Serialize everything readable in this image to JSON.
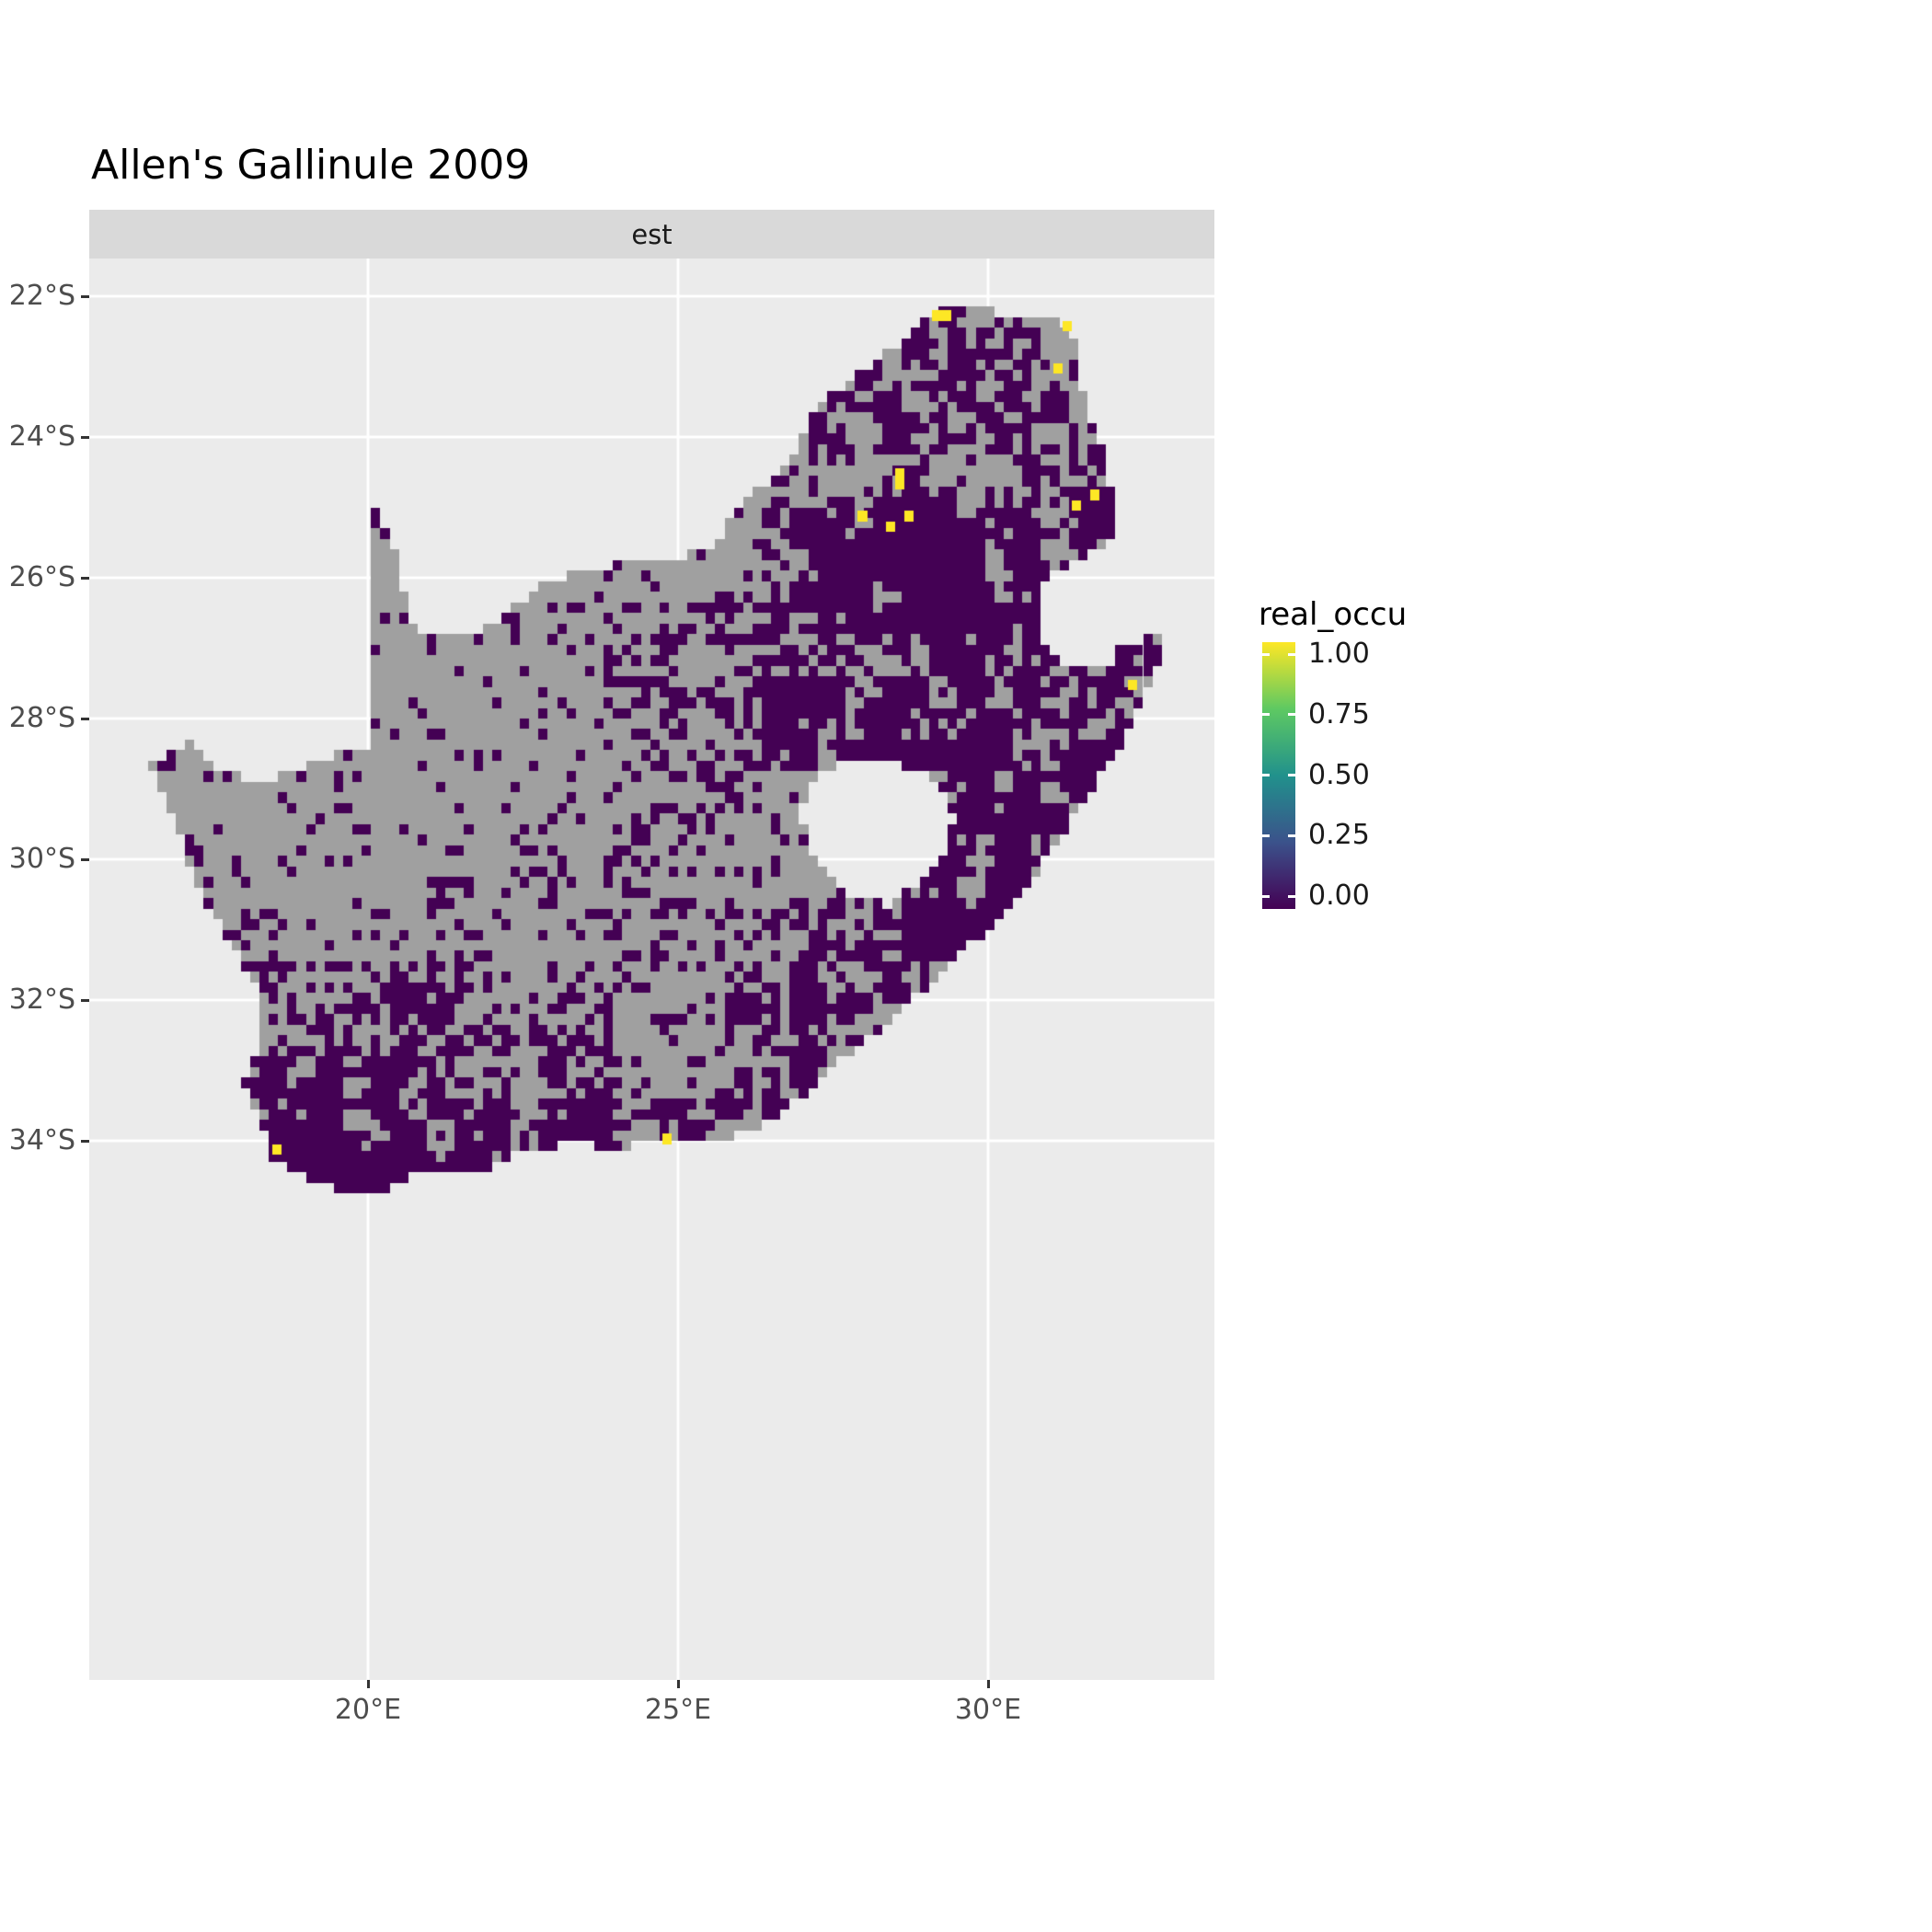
{
  "title": "Allen's Gallinule 2009",
  "facet_label": "est",
  "legend": {
    "title": "real_occu",
    "entries": [
      {
        "label": "1.00",
        "value": 1.0
      },
      {
        "label": "0.75",
        "value": 0.75
      },
      {
        "label": "0.50",
        "value": 0.5
      },
      {
        "label": "0.25",
        "value": 0.25
      },
      {
        "label": "0.00",
        "value": 0.0
      }
    ]
  },
  "axes": {
    "x": [
      {
        "label": "20°E",
        "lon": 20
      },
      {
        "label": "25°E",
        "lon": 25
      },
      {
        "label": "30°E",
        "lon": 30
      }
    ],
    "y": [
      {
        "label": "22°S",
        "lat": -22
      },
      {
        "label": "24°S",
        "lat": -24
      },
      {
        "label": "26°S",
        "lat": -26
      },
      {
        "label": "28°S",
        "lat": -28
      },
      {
        "label": "30°S",
        "lat": -30
      },
      {
        "label": "32°S",
        "lat": -32
      },
      {
        "label": "34°S",
        "lat": -34
      }
    ]
  },
  "chart_data": {
    "type": "heatmap",
    "subtype": "geographic-raster-occupancy-map",
    "title": "Allen's Gallinule 2009",
    "facet": "est",
    "legend_title": "real_occu",
    "legend_type": "colorbar",
    "value_range": [
      0,
      1
    ],
    "geography": "South Africa (Lesotho shown as hole, Eswatini as notch)",
    "x_breaks_deg_east": [
      20,
      25,
      30
    ],
    "y_breaks_deg_south": [
      22,
      24,
      26,
      28,
      30,
      32,
      34
    ],
    "cell_size_deg": 0.15,
    "raster_lon_range": [
      16.0,
      33.2
    ],
    "raster_lat_range": [
      -35.2,
      -22.0
    ],
    "colors": {
      "zero": "#440154",
      "one": "#fde725",
      "na": "#a0a0a0",
      "panel": "#ebebeb",
      "strip": "#d9d9d9",
      "grid": "#ffffff",
      "viridis": [
        "#440154",
        "#3b528b",
        "#21918c",
        "#5ec962",
        "#fde725"
      ]
    },
    "outline_south_africa": [
      [
        20.0,
        -24.75
      ],
      [
        20.2,
        -25.1
      ],
      [
        20.4,
        -25.55
      ],
      [
        20.55,
        -26.0
      ],
      [
        20.65,
        -26.5
      ],
      [
        20.85,
        -26.85
      ],
      [
        21.4,
        -26.85
      ],
      [
        21.9,
        -26.7
      ],
      [
        22.4,
        -26.35
      ],
      [
        22.9,
        -26.05
      ],
      [
        23.5,
        -25.9
      ],
      [
        24.1,
        -25.8
      ],
      [
        24.75,
        -25.75
      ],
      [
        25.35,
        -25.65
      ],
      [
        25.65,
        -25.5
      ],
      [
        25.85,
        -25.1
      ],
      [
        26.05,
        -24.85
      ],
      [
        26.5,
        -24.6
      ],
      [
        26.85,
        -24.3
      ],
      [
        27.1,
        -23.7
      ],
      [
        27.5,
        -23.4
      ],
      [
        27.95,
        -23.05
      ],
      [
        28.4,
        -22.8
      ],
      [
        28.9,
        -22.35
      ],
      [
        29.3,
        -22.15
      ],
      [
        29.8,
        -22.15
      ],
      [
        30.3,
        -22.3
      ],
      [
        30.9,
        -22.3
      ],
      [
        31.3,
        -22.4
      ],
      [
        31.5,
        -23.0
      ],
      [
        31.55,
        -23.6
      ],
      [
        31.8,
        -24.05
      ],
      [
        31.95,
        -24.45
      ],
      [
        32.0,
        -24.95
      ],
      [
        32.0,
        -25.4
      ],
      [
        31.9,
        -25.62
      ],
      [
        31.35,
        -25.75
      ],
      [
        30.95,
        -26.05
      ],
      [
        30.8,
        -26.45
      ],
      [
        30.9,
        -26.85
      ],
      [
        31.2,
        -27.2
      ],
      [
        31.6,
        -27.32
      ],
      [
        31.97,
        -27.3
      ],
      [
        32.12,
        -26.9
      ],
      [
        32.88,
        -26.85
      ],
      [
        32.55,
        -27.6
      ],
      [
        32.25,
        -28.25
      ],
      [
        31.75,
        -28.9
      ],
      [
        31.05,
        -29.85
      ],
      [
        30.3,
        -30.75
      ],
      [
        29.55,
        -31.35
      ],
      [
        28.85,
        -31.95
      ],
      [
        28.1,
        -32.55
      ],
      [
        27.4,
        -33.0
      ],
      [
        26.6,
        -33.7
      ],
      [
        25.65,
        -33.98
      ],
      [
        24.85,
        -34.0
      ],
      [
        24.0,
        -34.1
      ],
      [
        23.3,
        -34.05
      ],
      [
        22.55,
        -34.15
      ],
      [
        21.8,
        -34.42
      ],
      [
        20.9,
        -34.42
      ],
      [
        20.0,
        -34.82
      ],
      [
        19.3,
        -34.62
      ],
      [
        18.8,
        -34.42
      ],
      [
        18.45,
        -34.32
      ],
      [
        18.35,
        -33.9
      ],
      [
        18.0,
        -33.15
      ],
      [
        18.25,
        -32.55
      ],
      [
        18.3,
        -31.95
      ],
      [
        17.85,
        -31.3
      ],
      [
        17.3,
        -30.45
      ],
      [
        16.95,
        -29.6
      ],
      [
        16.5,
        -28.65
      ],
      [
        17.1,
        -28.35
      ],
      [
        17.65,
        -28.75
      ],
      [
        18.25,
        -28.9
      ],
      [
        19.0,
        -28.68
      ],
      [
        19.6,
        -28.5
      ],
      [
        19.99,
        -28.42
      ],
      [
        19.99,
        -27.4
      ],
      [
        19.99,
        -26.3
      ],
      [
        19.99,
        -25.4
      ]
    ],
    "hole_lesotho": [
      [
        27.0,
        -29.2
      ],
      [
        27.3,
        -28.75
      ],
      [
        27.75,
        -28.58
      ],
      [
        28.35,
        -28.6
      ],
      [
        28.9,
        -28.75
      ],
      [
        29.35,
        -29.05
      ],
      [
        29.45,
        -29.45
      ],
      [
        29.25,
        -29.95
      ],
      [
        28.9,
        -30.3
      ],
      [
        28.35,
        -30.65
      ],
      [
        27.75,
        -30.5
      ],
      [
        27.35,
        -30.15
      ],
      [
        27.05,
        -29.7
      ]
    ],
    "occupancy_zero_regions": [
      {
        "box": [
          17.6,
          20.7,
          -32.7,
          -35.0
        ],
        "p": 0.95
      },
      {
        "box": [
          20.7,
          27.6,
          -33.35,
          -35.0
        ],
        "p": 0.78
      },
      {
        "box": [
          17.8,
          21.6,
          -31.4,
          -32.7
        ],
        "p": 0.45
      },
      {
        "box": [
          20.7,
          24.0,
          -32.3,
          -33.35
        ],
        "p": 0.5
      },
      {
        "box": [
          27.2,
          29.4,
          -25.35,
          -26.85
        ],
        "p": 0.95
      },
      {
        "box": [
          26.3,
          31.05,
          -24.8,
          -28.75
        ],
        "p": 0.8
      },
      {
        "box": [
          31.05,
          32.05,
          -24.85,
          -27.35
        ],
        "p": 0.62
      },
      {
        "box": [
          28.95,
          32.95,
          -26.8,
          -31.45
        ],
        "p": 0.85
      },
      {
        "box": [
          26.55,
          32.3,
          -22.0,
          -24.8
        ],
        "p": 0.52
      },
      {
        "box": [
          25.8,
          29.9,
          -30.6,
          -33.35
        ],
        "p": 0.6
      },
      {
        "box": [
          24.2,
          26.3,
          -26.4,
          -30.6
        ],
        "p": 0.38
      },
      {
        "box": [
          21.0,
          26.0,
          -29.8,
          -33.0
        ],
        "p": 0.24
      },
      {
        "box": [
          20.0,
          26.3,
          -24.7,
          -27.3
        ],
        "p": 0.17
      }
    ],
    "default_p": 0.12,
    "occupancy_one_cells": [
      [
        29.15,
        -22.2
      ],
      [
        29.3,
        -22.2
      ],
      [
        31.2,
        -22.4
      ],
      [
        31.08,
        -23.0
      ],
      [
        28.56,
        -24.55
      ],
      [
        28.56,
        -24.7
      ],
      [
        27.98,
        -25.15
      ],
      [
        28.41,
        -25.3
      ],
      [
        28.68,
        -25.15
      ],
      [
        31.44,
        -24.92
      ],
      [
        31.66,
        -24.82
      ],
      [
        32.28,
        -27.5
      ],
      [
        18.52,
        -34.05
      ],
      [
        24.81,
        -34.02
      ]
    ]
  }
}
